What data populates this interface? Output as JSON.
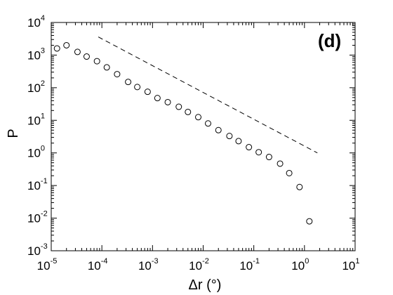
{
  "chart_data": {
    "type": "scatter",
    "title": "",
    "panel_label": "(d)",
    "xlabel": "Δr (°)",
    "ylabel": "P",
    "xscale": "log",
    "yscale": "log",
    "xlim": [
      1e-05,
      10
    ],
    "ylim": [
      0.001,
      10000
    ],
    "x_ticks": [
      {
        "base": "10",
        "exp": "-5",
        "value": 1e-05
      },
      {
        "base": "10",
        "exp": "-4",
        "value": 0.0001
      },
      {
        "base": "10",
        "exp": "-3",
        "value": 0.001
      },
      {
        "base": "10",
        "exp": "-2",
        "value": 0.01
      },
      {
        "base": "10",
        "exp": "-1",
        "value": 0.1
      },
      {
        "base": "10",
        "exp": "0",
        "value": 1
      },
      {
        "base": "10",
        "exp": "1",
        "value": 10
      }
    ],
    "y_ticks": [
      {
        "base": "10",
        "exp": "-3",
        "value": 0.001
      },
      {
        "base": "10",
        "exp": "-2",
        "value": 0.01
      },
      {
        "base": "10",
        "exp": "-1",
        "value": 0.1
      },
      {
        "base": "10",
        "exp": "0",
        "value": 1
      },
      {
        "base": "10",
        "exp": "1",
        "value": 10
      },
      {
        "base": "10",
        "exp": "2",
        "value": 100
      },
      {
        "base": "10",
        "exp": "3",
        "value": 1000
      },
      {
        "base": "10",
        "exp": "4",
        "value": 10000
      }
    ],
    "grid": false,
    "series": [
      {
        "marker": "open-circle",
        "points": [
          {
            "x": 1.3e-05,
            "y": 1600
          },
          {
            "x": 2e-05,
            "y": 2000
          },
          {
            "x": 3.3e-05,
            "y": 1250
          },
          {
            "x": 5e-05,
            "y": 900
          },
          {
            "x": 8e-05,
            "y": 650
          },
          {
            "x": 0.000125,
            "y": 420
          },
          {
            "x": 0.0002,
            "y": 260
          },
          {
            "x": 0.00033,
            "y": 150
          },
          {
            "x": 0.0005,
            "y": 105
          },
          {
            "x": 0.0008,
            "y": 75
          },
          {
            "x": 0.00125,
            "y": 48
          },
          {
            "x": 0.002,
            "y": 36
          },
          {
            "x": 0.0033,
            "y": 26
          },
          {
            "x": 0.005,
            "y": 18
          },
          {
            "x": 0.008,
            "y": 12.5
          },
          {
            "x": 0.0125,
            "y": 8.0
          },
          {
            "x": 0.02,
            "y": 5.0
          },
          {
            "x": 0.033,
            "y": 3.3
          },
          {
            "x": 0.05,
            "y": 2.3
          },
          {
            "x": 0.08,
            "y": 1.5
          },
          {
            "x": 0.125,
            "y": 1.05
          },
          {
            "x": 0.2,
            "y": 0.75
          },
          {
            "x": 0.33,
            "y": 0.47
          },
          {
            "x": 0.5,
            "y": 0.24
          },
          {
            "x": 0.8,
            "y": 0.09
          },
          {
            "x": 1.25,
            "y": 0.008
          }
        ]
      },
      {
        "style": "dashed-line",
        "points": [
          {
            "x": 8.5e-05,
            "y": 3600
          },
          {
            "x": 1.8,
            "y": 1.0
          }
        ]
      }
    ]
  },
  "colors": {
    "axis": "#000000",
    "marker": "#000000",
    "background": "#ffffff"
  }
}
